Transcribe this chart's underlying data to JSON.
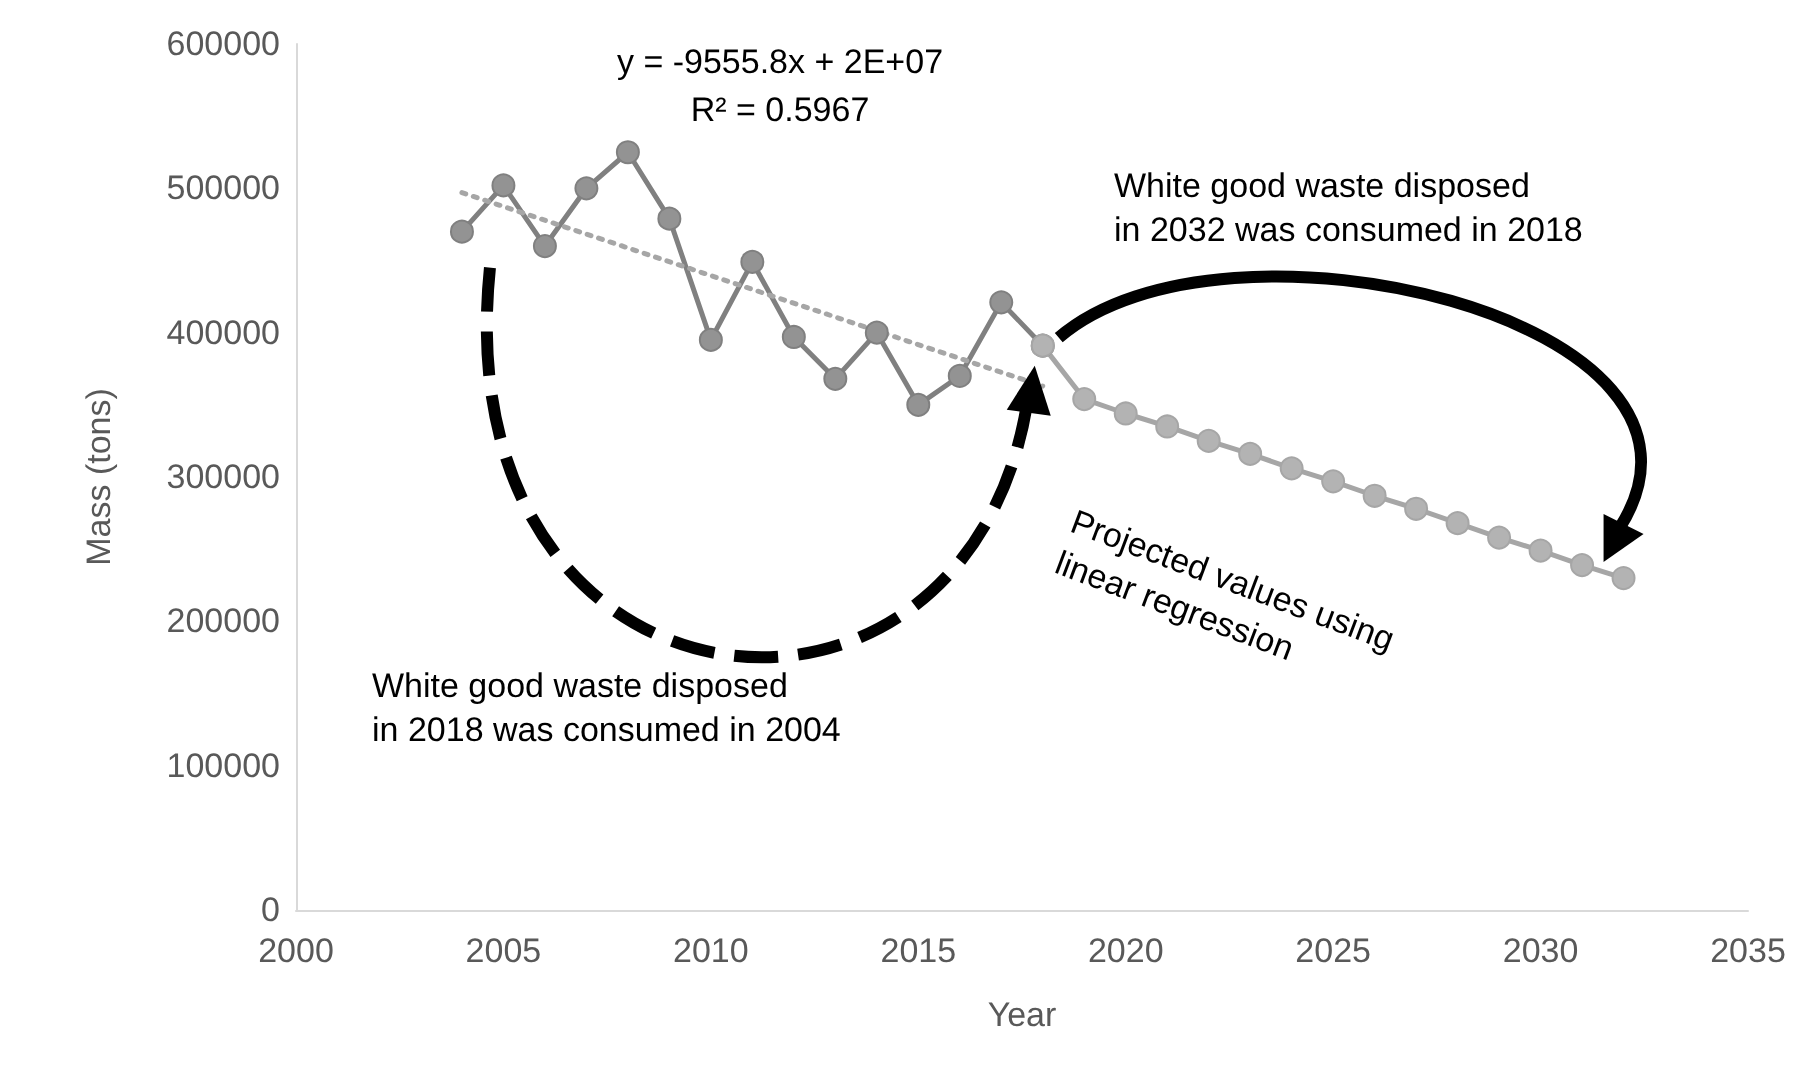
{
  "chart_data": {
    "type": "line",
    "xlabel": "Year",
    "ylabel": "Mass (tons)",
    "xlim": [
      2000,
      2035
    ],
    "xticks": [
      2000,
      2005,
      2010,
      2015,
      2020,
      2025,
      2030,
      2035
    ],
    "ylim": [
      0,
      600000
    ],
    "yticks": [
      0,
      100000,
      200000,
      300000,
      400000,
      500000,
      600000
    ],
    "grid": false,
    "marker": "circle",
    "line_style": "solid",
    "series": [
      {
        "color": "#808080",
        "x": [
          2004,
          2005,
          2006,
          2007,
          2008,
          2009,
          2010,
          2011,
          2012,
          2013,
          2014,
          2015,
          2016,
          2017,
          2018
        ],
        "values": [
          470000,
          502000,
          460000,
          500000,
          525000,
          479000,
          395000,
          449000,
          397000,
          368000,
          400000,
          350000,
          370000,
          421000,
          391000
        ]
      },
      {
        "color": "#a6a6a6",
        "x": [
          2018,
          2019,
          2020,
          2021,
          2022,
          2023,
          2024,
          2025,
          2026,
          2027,
          2028,
          2029,
          2030,
          2031,
          2032
        ],
        "values": [
          391000,
          354000,
          344000,
          335000,
          325000,
          316000,
          306000,
          297000,
          287000,
          278000,
          268000,
          258000,
          249000,
          239000,
          230000
        ]
      },
      {
        "color": "#a6a6a6",
        "x": [
          2004,
          2018
        ],
        "values": [
          497000,
          363000
        ],
        "line_style": "dotted",
        "marker": "none"
      }
    ],
    "annotations": [
      "y = -9555.8x + 2E+07",
      "R² = 0.5967",
      "White good waste disposed\nin 2032 was consumed in 2018",
      "White good waste disposed\nin 2018 was consumed in 2004",
      "Projected values using\nlinear regression"
    ]
  }
}
